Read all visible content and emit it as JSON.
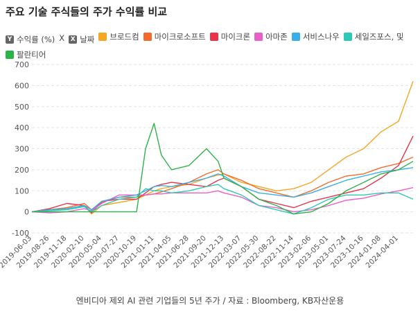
{
  "title": "주요 기술 주식들의 주가 수익률 비교",
  "legend": [
    {
      "label": "수익률 (%)",
      "symbol": "Y",
      "color": "#666666"
    },
    {
      "label": "X",
      "symbol": "",
      "color": ""
    },
    {
      "label": "날짜",
      "symbol": "X",
      "color": "#666666"
    }
  ],
  "caption": "엔비디아 제외 AI 관련 기업들의 5년 주가 / 자료 : Bloomberg, KB자산운용",
  "chart_data": {
    "type": "line",
    "ylim": [
      -100,
      700
    ],
    "y_ticks": [
      -100,
      0,
      100,
      200,
      300,
      400,
      500,
      600,
      700
    ],
    "x_ticks": [
      "2019-06-03",
      "2019-08-26",
      "2019-11-18",
      "2020-02-10",
      "2020-05-04",
      "2020-07-27",
      "2020-10-19",
      "2021-01-11",
      "2021-04-05",
      "2021-06-28",
      "2021-09-20",
      "2021-12-13",
      "2022-03-07",
      "2022-05-30",
      "2022-08-22",
      "2022-11-14",
      "2023-02-06",
      "2023-05-01",
      "2023-07-24",
      "2023-10-16",
      "2024-01-08",
      "2024-04-01"
    ],
    "grid": true,
    "legend_position": "top",
    "x_points": [
      "2019-06-03",
      "2019-08-26",
      "2019-11-18",
      "2020-02-10",
      "2020-03-16",
      "2020-05-04",
      "2020-07-27",
      "2020-10-19",
      "2020-12-01",
      "2021-01-11",
      "2021-02-15",
      "2021-04-05",
      "2021-06-28",
      "2021-09-20",
      "2021-11-15",
      "2021-12-13",
      "2022-03-07",
      "2022-05-30",
      "2022-08-22",
      "2022-11-14",
      "2023-02-06",
      "2023-05-01",
      "2023-07-24",
      "2023-10-16",
      "2024-01-08",
      "2024-04-01",
      "2024-06-10"
    ],
    "series": [
      {
        "name": "브로드컴",
        "color": "#f5a623",
        "values": [
          0,
          5,
          15,
          30,
          -10,
          30,
          45,
          60,
          80,
          100,
          110,
          120,
          130,
          160,
          175,
          180,
          140,
          120,
          100,
          110,
          140,
          200,
          260,
          300,
          380,
          430,
          620
        ]
      },
      {
        "name": "마이크로소프트",
        "color": "#f26b2c",
        "values": [
          0,
          10,
          20,
          40,
          10,
          45,
          70,
          70,
          80,
          85,
          95,
          110,
          140,
          180,
          200,
          180,
          150,
          110,
          90,
          70,
          100,
          140,
          170,
          180,
          210,
          230,
          260
        ]
      },
      {
        "name": "마이크론",
        "color": "#e8334a",
        "values": [
          0,
          15,
          40,
          30,
          -5,
          50,
          60,
          60,
          90,
          120,
          130,
          140,
          130,
          120,
          150,
          160,
          120,
          60,
          40,
          20,
          50,
          70,
          90,
          110,
          160,
          220,
          360
        ]
      },
      {
        "name": "아마존",
        "color": "#e85fc8",
        "values": [
          0,
          -5,
          0,
          15,
          5,
          40,
          80,
          80,
          80,
          85,
          85,
          90,
          90,
          90,
          100,
          90,
          70,
          30,
          20,
          0,
          10,
          30,
          55,
          65,
          85,
          100,
          115
        ]
      },
      {
        "name": "서비스나우",
        "color": "#3aaee8",
        "values": [
          0,
          10,
          15,
          30,
          10,
          50,
          70,
          80,
          100,
          120,
          125,
          120,
          140,
          160,
          180,
          170,
          120,
          90,
          80,
          70,
          90,
          120,
          150,
          170,
          190,
          200,
          210
        ]
      },
      {
        "name": "세일즈포스, 및",
        "color": "#2ec9b5",
        "values": [
          0,
          5,
          10,
          25,
          0,
          30,
          60,
          70,
          110,
          100,
          100,
          90,
          100,
          120,
          130,
          110,
          80,
          30,
          10,
          -10,
          20,
          60,
          80,
          80,
          90,
          90,
          60
        ]
      },
      {
        "name": "팔란티어",
        "color": "#2bb34a",
        "values": [
          0,
          0,
          0,
          0,
          0,
          0,
          0,
          0,
          300,
          420,
          270,
          200,
          220,
          300,
          240,
          160,
          120,
          60,
          30,
          -10,
          0,
          40,
          100,
          140,
          180,
          200,
          240
        ]
      }
    ]
  }
}
